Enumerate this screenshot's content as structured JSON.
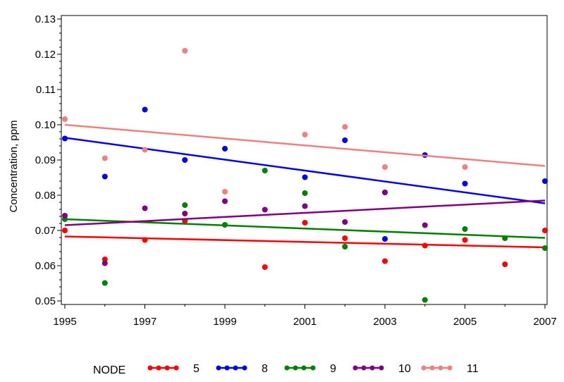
{
  "chart_data": {
    "type": "scatter",
    "title": "",
    "xlabel": "",
    "ylabel": "Concentration, ppm",
    "xlim": [
      1995,
      2007
    ],
    "ylim": [
      0.049,
      0.131
    ],
    "xticks": [
      "1995",
      "1997",
      "1999",
      "2001",
      "2003",
      "2005",
      "2007"
    ],
    "yticks": [
      "0.05",
      "0.06",
      "0.07",
      "0.08",
      "0.09",
      "0.10",
      "0.11",
      "0.12",
      "0.13"
    ],
    "grid": false,
    "legend": {
      "title": "NODE",
      "placement": "bottom"
    },
    "series": [
      {
        "name": "5",
        "color": "#ff0000",
        "points": [
          [
            1995,
            0.07
          ],
          [
            1996,
            0.0618
          ],
          [
            1997,
            0.0673
          ],
          [
            1998,
            0.0727
          ],
          [
            2000,
            0.0596
          ],
          [
            2001,
            0.0722
          ],
          [
            2002,
            0.0678
          ],
          [
            2003,
            0.0613
          ],
          [
            2004,
            0.0657
          ],
          [
            2005,
            0.0673
          ],
          [
            2006,
            0.0604
          ],
          [
            2007,
            0.07
          ]
        ],
        "trend": [
          [
            1995,
            0.0683
          ],
          [
            2007,
            0.0652
          ]
        ]
      },
      {
        "name": "8",
        "color": "#0000ee",
        "points": [
          [
            1995,
            0.0961
          ],
          [
            1996,
            0.0853
          ],
          [
            1997,
            0.1043
          ],
          [
            1998,
            0.09
          ],
          [
            1999,
            0.0932
          ],
          [
            2001,
            0.0851
          ],
          [
            2002,
            0.0956
          ],
          [
            2003,
            0.0676
          ],
          [
            2004,
            0.0914
          ],
          [
            2005,
            0.0833
          ],
          [
            2007,
            0.084
          ]
        ],
        "trend": [
          [
            1995,
            0.0963
          ],
          [
            2007,
            0.0777
          ]
        ]
      },
      {
        "name": "9",
        "color": "#008000",
        "points": [
          [
            1995,
            0.0732
          ],
          [
            1996,
            0.0551
          ],
          [
            1998,
            0.0772
          ],
          [
            1999,
            0.0716
          ],
          [
            2000,
            0.087
          ],
          [
            2001,
            0.0806
          ],
          [
            2002,
            0.0654
          ],
          [
            2003,
            0.0808
          ],
          [
            2004,
            0.0503
          ],
          [
            2005,
            0.0704
          ],
          [
            2006,
            0.0678
          ],
          [
            2007,
            0.065
          ]
        ],
        "trend": [
          [
            1995,
            0.0732
          ],
          [
            2007,
            0.0679
          ]
        ]
      },
      {
        "name": "10",
        "color": "#800080",
        "points": [
          [
            1995,
            0.0742
          ],
          [
            1996,
            0.0607
          ],
          [
            1997,
            0.0763
          ],
          [
            1998,
            0.0748
          ],
          [
            1999,
            0.0783
          ],
          [
            2000,
            0.0759
          ],
          [
            2001,
            0.0769
          ],
          [
            2002,
            0.0724
          ],
          [
            2003,
            0.0808
          ],
          [
            2004,
            0.0715
          ]
        ],
        "trend": [
          [
            1995,
            0.0715
          ],
          [
            2007,
            0.0785
          ]
        ]
      },
      {
        "name": "11",
        "color": "#f08080",
        "points": [
          [
            1995,
            0.1016
          ],
          [
            1996,
            0.0905
          ],
          [
            1997,
            0.0929
          ],
          [
            1998,
            0.121
          ],
          [
            1999,
            0.081
          ],
          [
            2001,
            0.0972
          ],
          [
            2002,
            0.0994
          ],
          [
            2003,
            0.088
          ],
          [
            2005,
            0.088
          ]
        ],
        "trend": [
          [
            1995,
            0.1
          ],
          [
            2007,
            0.0883
          ]
        ]
      }
    ]
  }
}
